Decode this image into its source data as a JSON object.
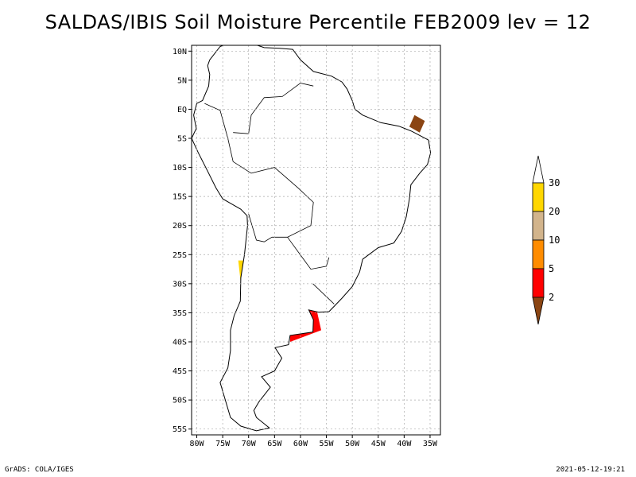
{
  "title": "SALDAS/IBIS Soil Moisture Percentile FEB2009 lev = 12",
  "footer": {
    "left": "GrADS: COLA/IGES",
    "right": "2021-05-12-19:21"
  },
  "chart_data": {
    "type": "heatmap",
    "lon_ticks": [
      "80W",
      "75W",
      "70W",
      "65W",
      "60W",
      "55W",
      "50W",
      "45W",
      "40W",
      "35W"
    ],
    "lat_ticks": [
      "10N",
      "5N",
      "EQ",
      "5S",
      "10S",
      "15S",
      "20S",
      "25S",
      "30S",
      "35S",
      "40S",
      "45S",
      "50S",
      "55S"
    ],
    "lon_range": [
      -81,
      -33
    ],
    "lat_range": [
      -56,
      11
    ],
    "grid": true,
    "legend_position": "right",
    "colorbar": {
      "labels": [
        "2",
        "5",
        "10",
        "20",
        "30"
      ],
      "colors": [
        "#8b4513",
        "#ff0000",
        "#ff8c00",
        "#d2b48c",
        "#ffd700",
        "#ffffff"
      ]
    },
    "regions": [
      {
        "category": "30",
        "color": "#ffd700",
        "polys": [
          [
            -75,
            10
          ],
          [
            -71,
            10.5
          ],
          [
            -70,
            8
          ],
          [
            -72,
            6
          ],
          [
            -75,
            7
          ]
        ]
      },
      {
        "category": "20",
        "color": "#d2b48c",
        "polys": [
          [
            -72,
            5
          ],
          [
            -68,
            6
          ],
          [
            -66,
            3
          ],
          [
            -70,
            2
          ]
        ]
      },
      {
        "category": "2",
        "color": "#8b4513",
        "polys": [
          [
            -38,
            -1
          ],
          [
            -36,
            -2
          ],
          [
            -37,
            -4
          ],
          [
            -39,
            -3
          ]
        ]
      },
      {
        "category": "20",
        "color": "#d2b48c",
        "polys": [
          [
            -63,
            -15
          ],
          [
            -58,
            -14
          ],
          [
            -58,
            -18
          ],
          [
            -63,
            -19
          ]
        ]
      },
      {
        "category": "5",
        "color": "#ff0000",
        "polys": [
          [
            -59,
            -29
          ],
          [
            -54,
            -28
          ],
          [
            -53,
            -32
          ],
          [
            -58,
            -33
          ]
        ]
      },
      {
        "category": "10",
        "color": "#ff8c00",
        "polys": [
          [
            -60,
            -26
          ],
          [
            -55,
            -26
          ],
          [
            -54,
            -30
          ],
          [
            -59,
            -30
          ]
        ]
      },
      {
        "category": "5",
        "color": "#ff0000",
        "polys": [
          [
            -62,
            -35
          ],
          [
            -57,
            -34
          ],
          [
            -56,
            -38
          ],
          [
            -62,
            -40
          ]
        ]
      },
      {
        "category": "30",
        "color": "#ffd700",
        "polys": [
          [
            -70,
            -36
          ],
          [
            -66,
            -36
          ],
          [
            -66,
            -44
          ],
          [
            -70,
            -44
          ]
        ]
      },
      {
        "category": "10",
        "color": "#ff8c00",
        "polys": [
          [
            -66,
            -35
          ],
          [
            -62,
            -34
          ],
          [
            -62,
            -39
          ],
          [
            -66,
            -39
          ]
        ]
      },
      {
        "category": "30",
        "color": "#ffd700",
        "polys": [
          [
            -72,
            -26
          ],
          [
            -70,
            -26
          ],
          [
            -69,
            -34
          ],
          [
            -71,
            -34
          ]
        ]
      },
      {
        "category": "20",
        "color": "#d2b48c",
        "polys": [
          [
            -55,
            -24
          ],
          [
            -51,
            -24
          ],
          [
            -51,
            -27
          ],
          [
            -55,
            -27
          ]
        ]
      },
      {
        "category": "2",
        "color": "#8b4513",
        "polys": [
          [
            -67,
            -15
          ],
          [
            -63,
            -16
          ],
          [
            -64,
            -18
          ],
          [
            -68,
            -17
          ]
        ]
      }
    ]
  }
}
